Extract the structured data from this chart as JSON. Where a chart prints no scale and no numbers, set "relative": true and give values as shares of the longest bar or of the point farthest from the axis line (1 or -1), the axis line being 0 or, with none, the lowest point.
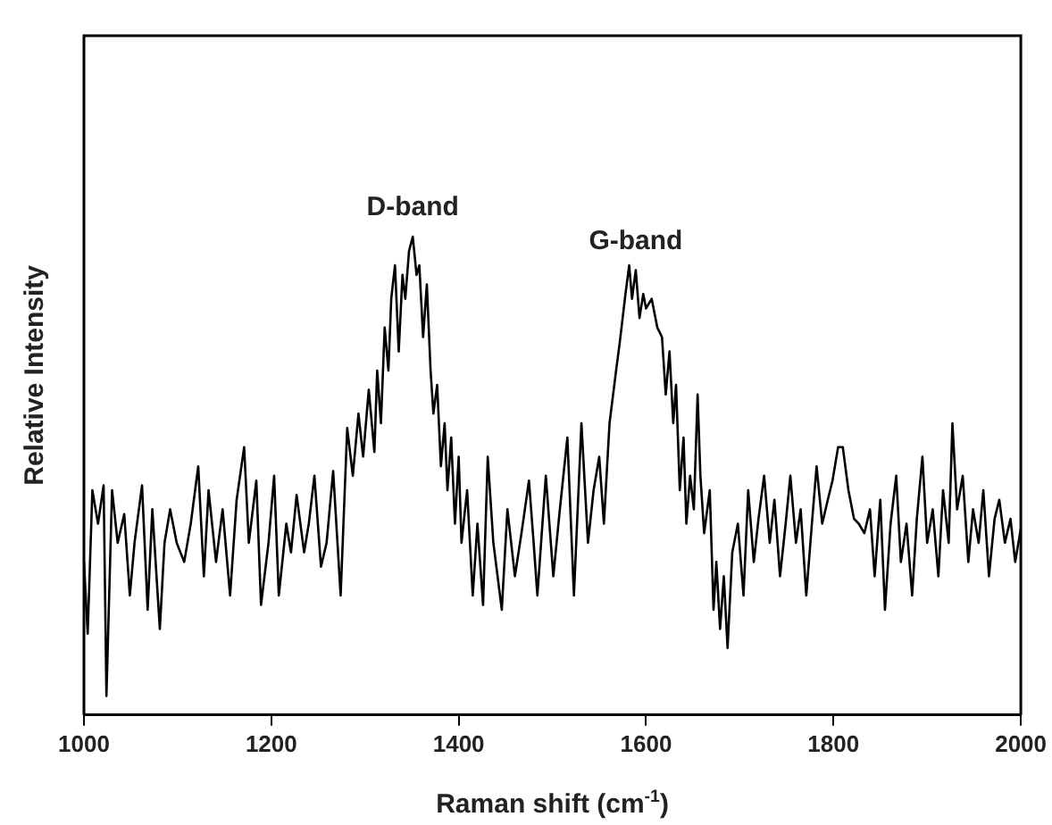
{
  "chart_data": {
    "type": "line",
    "xlabel": "Raman shift (cm$^{-1}$)",
    "ylabel": "Relative Intensity",
    "relative": true,
    "color": "#000000",
    "xlim": [
      1000,
      2000
    ],
    "xticks": [
      1000,
      1200,
      1400,
      1600,
      1800,
      2000
    ],
    "grid": false,
    "legend": false,
    "marker": "none",
    "line_style": "solid",
    "annotations": [
      {
        "text": "D-band",
        "x": 1351,
        "y": 1.0
      },
      {
        "text": "G-band",
        "x": 1589,
        "y": 0.93
      }
    ],
    "x": [
      1000,
      1004,
      1009,
      1015,
      1021,
      1024,
      1030,
      1036,
      1043,
      1049,
      1054,
      1062,
      1068,
      1073,
      1081,
      1086,
      1092,
      1099,
      1107,
      1114,
      1122,
      1128,
      1133,
      1141,
      1148,
      1156,
      1163,
      1171,
      1176,
      1184,
      1189,
      1197,
      1203,
      1208,
      1216,
      1221,
      1227,
      1235,
      1240,
      1246,
      1253,
      1259,
      1266,
      1274,
      1281,
      1287,
      1293,
      1298,
      1304,
      1310,
      1313,
      1317,
      1321,
      1325,
      1328,
      1332,
      1336,
      1340,
      1343,
      1347,
      1351,
      1355,
      1358,
      1362,
      1366,
      1370,
      1373,
      1377,
      1381,
      1385,
      1388,
      1392,
      1396,
      1400,
      1403,
      1409,
      1415,
      1420,
      1426,
      1431,
      1437,
      1446,
      1452,
      1460,
      1467,
      1475,
      1480,
      1484,
      1493,
      1501,
      1508,
      1516,
      1523,
      1531,
      1538,
      1544,
      1550,
      1555,
      1561,
      1568,
      1572,
      1578,
      1582,
      1585,
      1589,
      1593,
      1597,
      1600,
      1606,
      1612,
      1617,
      1621,
      1625,
      1629,
      1632,
      1636,
      1640,
      1643,
      1647,
      1651,
      1655,
      1658,
      1662,
      1668,
      1672,
      1675,
      1679,
      1683,
      1687,
      1692,
      1698,
      1704,
      1709,
      1715,
      1720,
      1726,
      1732,
      1737,
      1743,
      1749,
      1754,
      1760,
      1765,
      1771,
      1777,
      1782,
      1788,
      1794,
      1799,
      1805,
      1810,
      1816,
      1822,
      1827,
      1833,
      1839,
      1844,
      1850,
      1855,
      1861,
      1867,
      1872,
      1878,
      1884,
      1889,
      1895,
      1900,
      1906,
      1912,
      1917,
      1923,
      1927,
      1932,
      1938,
      1944,
      1949,
      1955,
      1960,
      1966,
      1972,
      1977,
      1983,
      1989,
      1994,
      2000
    ],
    "values": [
      0.32,
      0.17,
      0.47,
      0.4,
      0.48,
      0.04,
      0.47,
      0.36,
      0.42,
      0.25,
      0.36,
      0.48,
      0.22,
      0.43,
      0.18,
      0.36,
      0.43,
      0.36,
      0.32,
      0.4,
      0.52,
      0.29,
      0.47,
      0.32,
      0.43,
      0.25,
      0.45,
      0.56,
      0.36,
      0.49,
      0.23,
      0.36,
      0.5,
      0.25,
      0.4,
      0.34,
      0.46,
      0.34,
      0.4,
      0.5,
      0.31,
      0.36,
      0.51,
      0.25,
      0.6,
      0.5,
      0.63,
      0.54,
      0.68,
      0.55,
      0.72,
      0.61,
      0.81,
      0.72,
      0.87,
      0.94,
      0.76,
      0.92,
      0.87,
      0.97,
      1.0,
      0.92,
      0.94,
      0.79,
      0.9,
      0.72,
      0.63,
      0.69,
      0.52,
      0.61,
      0.47,
      0.58,
      0.4,
      0.54,
      0.36,
      0.47,
      0.25,
      0.4,
      0.23,
      0.54,
      0.36,
      0.22,
      0.43,
      0.29,
      0.38,
      0.49,
      0.36,
      0.25,
      0.5,
      0.29,
      0.43,
      0.58,
      0.25,
      0.61,
      0.36,
      0.47,
      0.54,
      0.4,
      0.61,
      0.72,
      0.78,
      0.88,
      0.94,
      0.87,
      0.93,
      0.83,
      0.88,
      0.85,
      0.87,
      0.81,
      0.79,
      0.67,
      0.76,
      0.61,
      0.69,
      0.47,
      0.58,
      0.4,
      0.5,
      0.43,
      0.67,
      0.5,
      0.38,
      0.47,
      0.22,
      0.32,
      0.18,
      0.29,
      0.14,
      0.34,
      0.4,
      0.25,
      0.47,
      0.32,
      0.41,
      0.5,
      0.36,
      0.45,
      0.29,
      0.4,
      0.5,
      0.36,
      0.43,
      0.25,
      0.4,
      0.52,
      0.4,
      0.45,
      0.49,
      0.56,
      0.56,
      0.47,
      0.41,
      0.4,
      0.38,
      0.43,
      0.29,
      0.45,
      0.22,
      0.4,
      0.5,
      0.32,
      0.4,
      0.25,
      0.41,
      0.54,
      0.36,
      0.43,
      0.29,
      0.47,
      0.36,
      0.61,
      0.43,
      0.5,
      0.32,
      0.43,
      0.36,
      0.47,
      0.29,
      0.41,
      0.45,
      0.36,
      0.41,
      0.32,
      0.39
    ]
  }
}
